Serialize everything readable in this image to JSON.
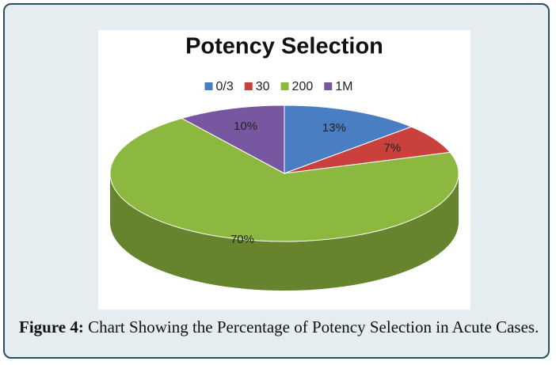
{
  "chart_data": {
    "type": "pie",
    "title": "Potency Selection",
    "categories": [
      "0/3",
      "30",
      "200",
      "1M"
    ],
    "values": [
      13,
      7,
      70,
      10
    ],
    "value_labels": [
      "13%",
      "7%",
      "70%",
      "10%"
    ],
    "colors": [
      "#4a7ec2",
      "#c9403d",
      "#8db83f",
      "#7757a0"
    ],
    "legend": "top"
  },
  "caption": {
    "label": "Figure 4:",
    "text": "Chart Showing the Percentage of Potency Selection in Acute Cases."
  }
}
